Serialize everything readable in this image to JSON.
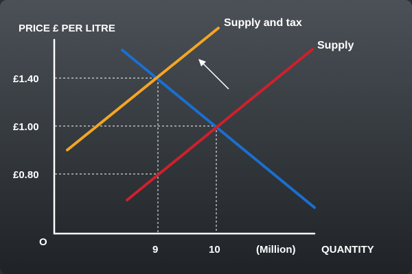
{
  "diagram": {
    "y_axis_title": "PRICE £ PER LITRE",
    "x_axis_title": "QUANTITY",
    "x_unit": "(Million)",
    "origin_label": "O",
    "y_ticks": [
      "£1.40",
      "£1.00",
      "£0.80"
    ],
    "x_ticks": [
      "9",
      "10"
    ],
    "curves": [
      {
        "key": "supply_tax",
        "label": "Supply and tax",
        "color": "#f5a623"
      },
      {
        "key": "supply",
        "label": "Supply",
        "color": "#d0202b"
      },
      {
        "key": "demand",
        "label": "",
        "color": "#1a6fd1"
      }
    ],
    "shift_arrow_icon": "arrow-up-left-icon",
    "colors": {
      "background_top": "#4b5157",
      "background_bottom": "#1f2327",
      "text": "#ffffff"
    }
  }
}
